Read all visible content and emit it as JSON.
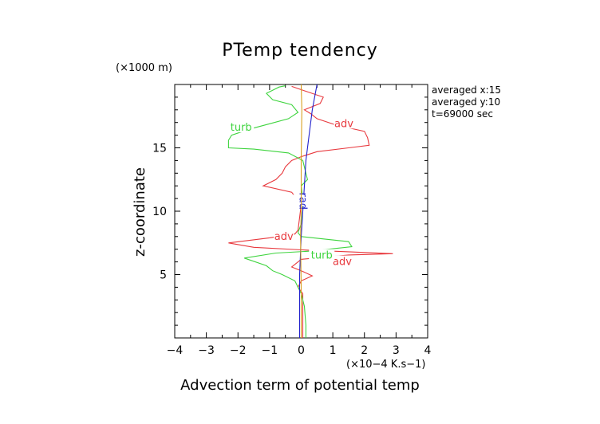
{
  "chart_data": {
    "type": "line",
    "title": "PTemp tendency",
    "xlabel": "Advection term of potential temp",
    "ylabel": "z-coordinate",
    "x_scale_label": "(×10−4 K.s−1)",
    "y_scale_label": "(×1000 m)",
    "xlim": [
      -4,
      4
    ],
    "ylim": [
      0,
      20
    ],
    "x_ticks": [
      -4,
      -3,
      -2,
      -1,
      0,
      1,
      2,
      3,
      4
    ],
    "y_ticks": [
      5,
      10,
      15
    ],
    "x_tick_labels": [
      "−4",
      "−3",
      "−2",
      "−1",
      "0",
      "1",
      "2",
      "3",
      "4"
    ],
    "y_tick_labels": [
      "5",
      "10",
      "15"
    ],
    "grid": false,
    "legend": "none",
    "info_lines": [
      "averaged  x:15",
      "averaged  y:10",
      "t=69000 sec"
    ],
    "series": [
      {
        "name": "adv",
        "color": "#e8383d",
        "labels": [
          {
            "text": "adv",
            "x": 1.35,
            "y": 16.9
          },
          {
            "text": "adv",
            "x": -0.55,
            "y": 8.0
          },
          {
            "text": "adv",
            "x": 1.3,
            "y": 6.0
          }
        ],
        "points": [
          [
            0.05,
            0.0
          ],
          [
            0.05,
            1.0
          ],
          [
            0.05,
            2.5
          ],
          [
            0.05,
            3.5
          ],
          [
            -0.1,
            4.0
          ],
          [
            0.0,
            4.5
          ],
          [
            0.35,
            4.9
          ],
          [
            0.0,
            5.3
          ],
          [
            -0.3,
            5.6
          ],
          [
            0.0,
            6.2
          ],
          [
            1.5,
            6.55
          ],
          [
            2.9,
            6.65
          ],
          [
            1.5,
            6.8
          ],
          [
            0.0,
            6.95
          ],
          [
            -1.5,
            7.15
          ],
          [
            -2.3,
            7.5
          ],
          [
            -1.0,
            7.9
          ],
          [
            -0.2,
            8.2
          ],
          [
            -0.1,
            8.5
          ],
          [
            -0.05,
            9.5
          ],
          [
            0.0,
            10.5
          ],
          [
            -0.3,
            11.5
          ],
          [
            -1.2,
            12.0
          ],
          [
            -0.8,
            12.5
          ],
          [
            -0.6,
            13.0
          ],
          [
            -0.5,
            13.5
          ],
          [
            -0.3,
            14.0
          ],
          [
            0.0,
            14.3
          ],
          [
            0.5,
            14.7
          ],
          [
            1.5,
            15.0
          ],
          [
            2.15,
            15.2
          ],
          [
            2.1,
            15.8
          ],
          [
            2.0,
            16.3
          ],
          [
            1.1,
            16.8
          ],
          [
            0.5,
            17.3
          ],
          [
            0.3,
            17.7
          ],
          [
            0.1,
            18.0
          ],
          [
            0.6,
            18.5
          ],
          [
            0.7,
            19.0
          ],
          [
            0.1,
            19.5
          ],
          [
            -0.3,
            19.85
          ]
        ]
      },
      {
        "name": "turb",
        "color": "#3ed43e",
        "labels": [
          {
            "text": "turb",
            "x": -1.9,
            "y": 16.6
          },
          {
            "text": "turb",
            "x": 0.65,
            "y": 6.5
          }
        ],
        "points": [
          [
            0.15,
            0.0
          ],
          [
            0.15,
            1.0
          ],
          [
            0.1,
            2.5
          ],
          [
            0.0,
            3.5
          ],
          [
            -0.1,
            4.0
          ],
          [
            -0.2,
            4.5
          ],
          [
            -0.6,
            5.0
          ],
          [
            -0.9,
            5.3
          ],
          [
            -1.1,
            5.7
          ],
          [
            -1.8,
            6.3
          ],
          [
            -0.8,
            6.7
          ],
          [
            0.3,
            6.85
          ],
          [
            1.6,
            7.2
          ],
          [
            1.5,
            7.6
          ],
          [
            0.0,
            8.0
          ],
          [
            -0.1,
            8.3
          ],
          [
            0.0,
            9.0
          ],
          [
            0.05,
            10.0
          ],
          [
            0.05,
            11.0
          ],
          [
            0.0,
            12.0
          ],
          [
            0.2,
            12.5
          ],
          [
            0.15,
            13.0
          ],
          [
            0.05,
            14.0
          ],
          [
            -0.4,
            14.6
          ],
          [
            -1.5,
            14.9
          ],
          [
            -2.3,
            15.0
          ],
          [
            -2.3,
            15.6
          ],
          [
            -2.2,
            16.0
          ],
          [
            -1.6,
            16.5
          ],
          [
            -1.0,
            16.9
          ],
          [
            -0.4,
            17.3
          ],
          [
            -0.1,
            17.8
          ],
          [
            -0.3,
            18.4
          ],
          [
            -0.9,
            18.8
          ],
          [
            -1.1,
            19.3
          ],
          [
            -0.7,
            19.8
          ],
          [
            -0.5,
            19.9
          ]
        ]
      },
      {
        "name": "rad",
        "color": "#2222cc",
        "labels": [
          {
            "text": "rad",
            "x": 0.05,
            "y": 10.8
          }
        ],
        "points": [
          [
            -0.05,
            0.0
          ],
          [
            -0.05,
            5.0
          ],
          [
            0.0,
            8.0
          ],
          [
            0.05,
            10.0
          ],
          [
            0.1,
            12.0
          ],
          [
            0.15,
            14.0
          ],
          [
            0.25,
            16.0
          ],
          [
            0.35,
            18.0
          ],
          [
            0.5,
            20.0
          ]
        ]
      },
      {
        "name": "",
        "color": "#d8a020",
        "labels": [],
        "points": [
          [
            0.0,
            0.0
          ],
          [
            0.0,
            4.0
          ],
          [
            -0.02,
            8.0
          ],
          [
            0.0,
            10.0
          ],
          [
            0.0,
            14.0
          ],
          [
            0.02,
            18.0
          ],
          [
            0.0,
            20.0
          ]
        ]
      }
    ]
  }
}
